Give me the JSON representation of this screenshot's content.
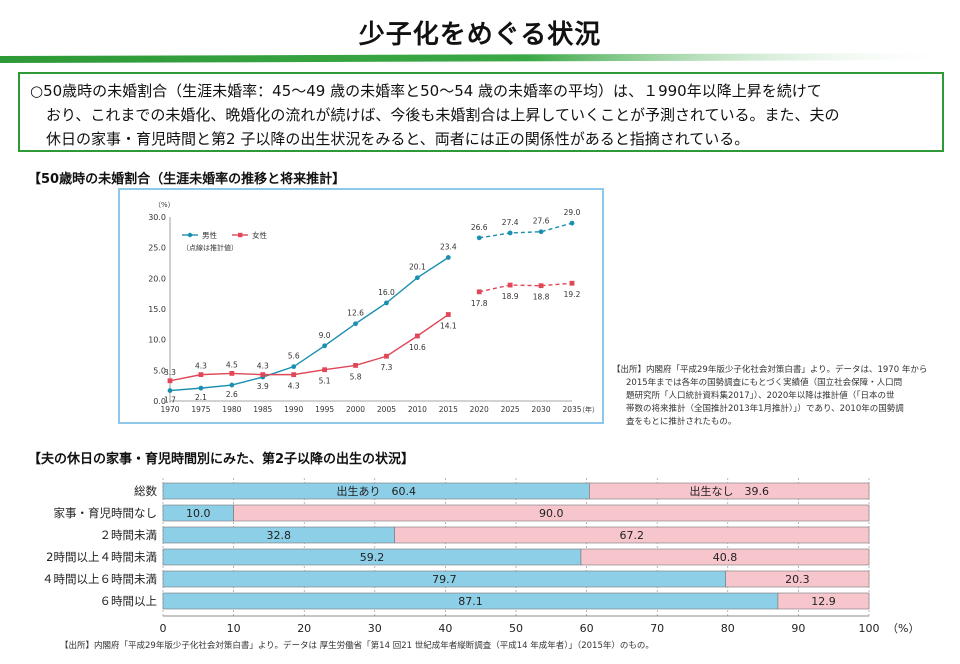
{
  "page": {
    "title": "少子化をめぐる状況",
    "band_color": "#2e9a37",
    "summary_lines": [
      "○50歳時の未婚割合（生涯未婚率：45～49 歳の未婚率と50～54 歳の未婚率の平均）は、１990年以降上昇を続けて",
      "おり、これまでの未婚化、晩婚化の流れが続けば、今後も未婚割合は上昇していくことが予測されている。また、夫の",
      "休日の家事・育児時間と第2 子以降の出生状況をみると、両者には正の関係性があると指摘されている。"
    ]
  },
  "chart1": {
    "heading": "【50歳時の未婚割合（生涯未婚率の推移と将来推計】",
    "source_lines": [
      "【出所】内閣府「平成29年版少子化社会対策白書」より。データは、1970 年から",
      "2015年までは各年の国勢調査にもとづく実績値（国立社会保障・人口問",
      "題研究所「人口統計資料集2017」）、2020年以降は推計値（「日本の世",
      "帯数の将来推計（全国推計2013年1月推計）」）であり、2010年の国勢調",
      "査をもとに推計されたもの。"
    ]
  },
  "chart2": {
    "heading": "【夫の休日の家事・育児時間別にみた、第2子以降の出生の状況】",
    "source": "【出所】内閣府「平成29年版少子化社会対策白書」より。データは 厚生労働省「第14 回21 世紀成年者縦断調査（平成14 年成年者）」（2015年）のもの。"
  },
  "chart_data": [
    {
      "type": "line",
      "x": [
        1970,
        1975,
        1980,
        1985,
        1990,
        1995,
        2000,
        2005,
        2010,
        2015,
        2020,
        2025,
        2030,
        2035
      ],
      "x_unit_label": "（年）",
      "y_unit_label": "（%）",
      "ylim": [
        0,
        30
      ],
      "yticks": [
        "0.0",
        "5.0",
        "10.0",
        "15.0",
        "20.0",
        "25.0",
        "30.0"
      ],
      "legend_note": "（点線は推計値）",
      "legend_placement": "top-left",
      "projection_start": 2020,
      "series": [
        {
          "name": "男性",
          "color": "#1a8fb0",
          "values": [
            1.7,
            2.1,
            2.6,
            3.9,
            5.6,
            9.0,
            12.6,
            16.0,
            20.1,
            23.4,
            26.6,
            27.4,
            27.6,
            29.0
          ],
          "labels": [
            "1.7",
            "2.1",
            "2.6",
            "3.9",
            "5.6",
            "9.0",
            "12.6",
            "16.0",
            "20.1",
            "23.4",
            "26.6",
            "27.4",
            "27.6",
            "29.0"
          ]
        },
        {
          "name": "女性",
          "color": "#e04858",
          "values": [
            3.3,
            4.3,
            4.5,
            4.3,
            4.3,
            5.1,
            5.8,
            7.3,
            10.6,
            14.1,
            17.8,
            18.9,
            18.8,
            19.2
          ],
          "labels": [
            "3.3",
            "4.3",
            "4.5",
            "4.3",
            "4.3",
            "5.1",
            "5.8",
            "7.3",
            "10.6",
            "14.1",
            "17.8",
            "18.9",
            "18.8",
            "19.2"
          ]
        }
      ]
    },
    {
      "type": "bar",
      "orientation": "horizontal",
      "stacked": true,
      "categories": [
        "総数",
        "家事・育児時間なし",
        "２時間未満",
        "2時間以上４時間未満",
        "４時間以上６時間未満",
        "６時間以上"
      ],
      "series": [
        {
          "name": "出生あり",
          "color": "#8ecfe8",
          "values": [
            60.4,
            10.0,
            32.8,
            59.2,
            79.7,
            87.1
          ],
          "labels": [
            "60.4",
            "10.0",
            "32.8",
            "59.2",
            "79.7",
            "87.1"
          ]
        },
        {
          "name": "出生なし",
          "color": "#f7c6cd",
          "values": [
            39.6,
            90.0,
            67.2,
            40.8,
            20.3,
            12.9
          ],
          "labels": [
            "39.6",
            "90.0",
            "67.2",
            "40.8",
            "20.3",
            "12.9"
          ]
        }
      ],
      "xlim": [
        0,
        100
      ],
      "xticks": [
        "0",
        "10",
        "20",
        "30",
        "40",
        "50",
        "60",
        "70",
        "80",
        "90",
        "100"
      ],
      "x_unit_label": "（%）"
    }
  ]
}
